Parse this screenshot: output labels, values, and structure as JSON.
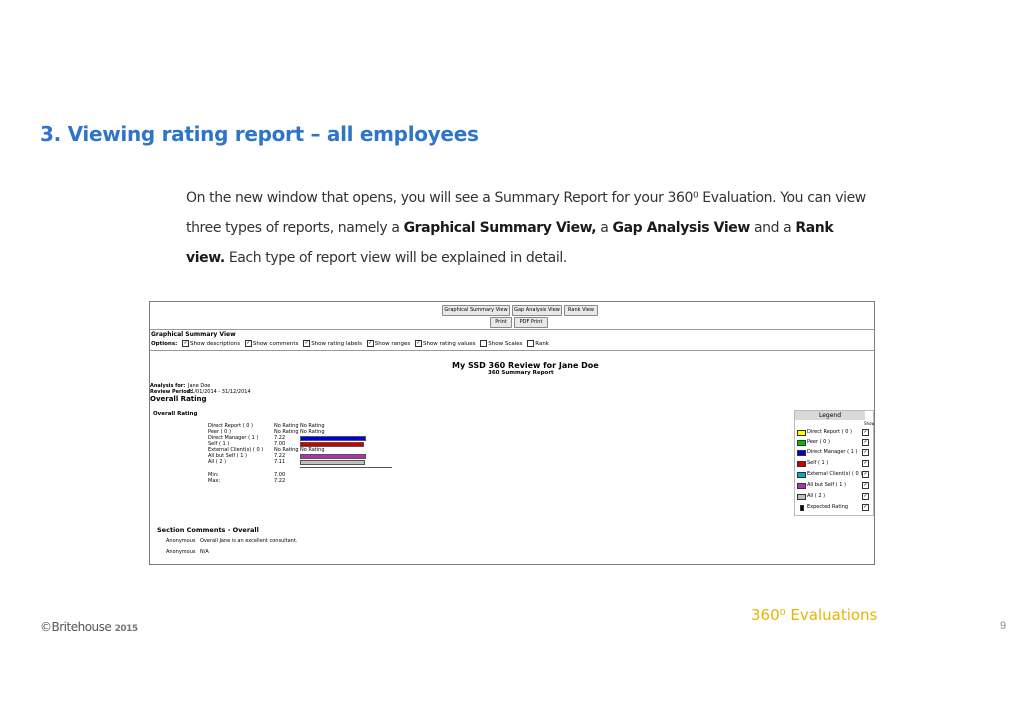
{
  "slide": {
    "title": "3. Viewing rating report  – all employees",
    "paragraph": {
      "p1": "On the new window that opens, you will see a Summary Report for your 360⁰ Evaluation. You can view three types of reports, namely a ",
      "h1": "Graphical Summary View,",
      "p2": " a ",
      "h2": "Gap Analysis View",
      "p3": " and a ",
      "h3": "Rank view.",
      "p4": " Each type of report view will be explained in detail."
    }
  },
  "screenshot": {
    "buttons": {
      "graphical": "Graphical Summary View",
      "gap": "Gap Analysis View",
      "rank": "Rank View",
      "print": "Print",
      "pdf": "PDF Print"
    },
    "section_title": "Graphical Summary View",
    "options_label": "Options:",
    "options": [
      {
        "label": "Show descriptions",
        "checked": "✓"
      },
      {
        "label": "Show comments",
        "checked": "✓"
      },
      {
        "label": "Show rating labels",
        "checked": "✓"
      },
      {
        "label": "Show ranges",
        "checked": "✓"
      },
      {
        "label": "Show rating values",
        "checked": "✓"
      },
      {
        "label": "Show Scales",
        "checked": ""
      },
      {
        "label": "Rank",
        "checked": ""
      }
    ],
    "report_title": "My SSD 360 Review for Jane Doe",
    "report_subtitle": "360 Summary Report",
    "analysis_for_label": "Analysis for:",
    "analysis_for_value": "Jane Doe",
    "review_period_label": "Review Period:",
    "review_period_value": "01/01/2014 - 31/12/2014",
    "overall_rating_heading": "Overall Rating",
    "overall_rating_sub": "Overall Rating",
    "rows": [
      {
        "label": "Direct Report ( 0 )",
        "value": "No Rating",
        "extra": "No Rating"
      },
      {
        "label": "Peer ( 0 )",
        "value": "No Rating",
        "extra": "No Rating"
      },
      {
        "label": "Direct Manager ( 1 )",
        "value": "7.22",
        "extra": ""
      },
      {
        "label": "Self ( 1 )",
        "value": "7.00",
        "extra": ""
      },
      {
        "label": "External Client(s) ( 0 )",
        "value": "No Rating",
        "extra": "No Rating"
      },
      {
        "label": "All but Self ( 1 )",
        "value": "7.22",
        "extra": ""
      },
      {
        "label": "All ( 2 )",
        "value": "7.11",
        "extra": ""
      }
    ],
    "min_label": "Min:",
    "min_value": "7.00",
    "max_label": "Max:",
    "max_value": "7.22",
    "legend": {
      "title": "Legend",
      "show": "Show",
      "items": [
        {
          "label": "Direct Report ( 0 )",
          "color": "#ffff00",
          "checked": "✓"
        },
        {
          "label": "Peer ( 0 )",
          "color": "#00c000",
          "checked": "✓"
        },
        {
          "label": "Direct Manager ( 1 )",
          "color": "#0000dd",
          "checked": "✓"
        },
        {
          "label": "Self ( 1 )",
          "color": "#cc0000",
          "checked": "✓"
        },
        {
          "label": "External Client(s) ( 0 )",
          "color": "#00aacc",
          "checked": "✓"
        },
        {
          "label": "All but Self ( 1 )",
          "color": "#b030b0",
          "checked": "✓"
        },
        {
          "label": "All ( 2 )",
          "color": "#c0c0c0",
          "checked": "✓"
        },
        {
          "label": "Expected Rating",
          "color": "#000000",
          "checked": "✓"
        }
      ]
    },
    "comments_heading": "Section Comments - Overall",
    "comments": [
      {
        "author": "Anonymous",
        "text": "Overall Jane is an excellent consultant."
      },
      {
        "author": "Anonymous",
        "text": "N/A"
      }
    ]
  },
  "footer": {
    "brand": "©Britehouse",
    "year": "2015",
    "product": "360⁰ Evaluations",
    "page": "9"
  }
}
